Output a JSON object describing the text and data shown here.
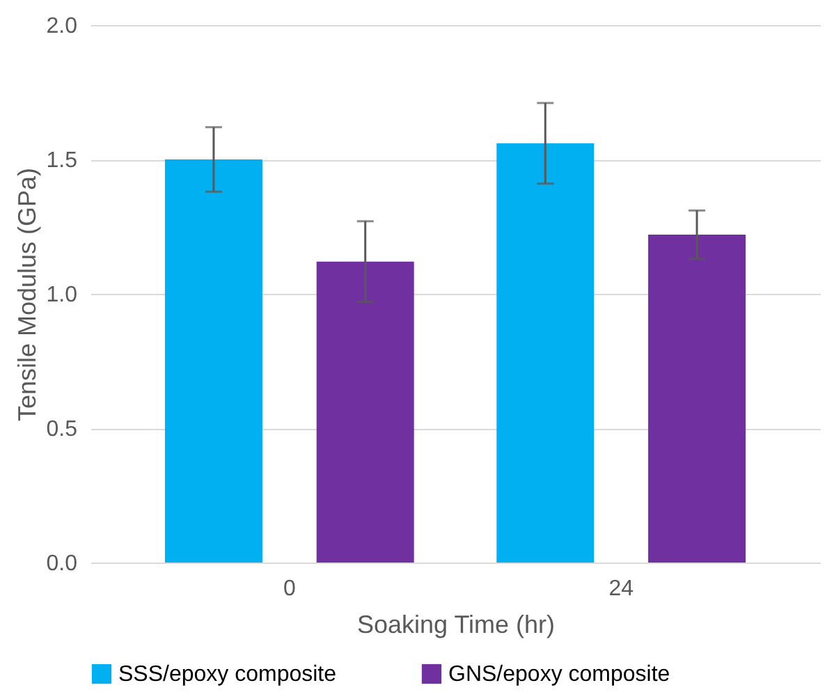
{
  "chart_data": {
    "type": "bar",
    "xlabel": "Soaking Time (hr)",
    "ylabel": "Tensile Modulus (GPa)",
    "categories": [
      "0",
      "24"
    ],
    "series": [
      {
        "name": "SSS/epoxy composite",
        "color": "#00b0f0",
        "values": [
          1.5,
          1.56
        ],
        "errors": [
          0.12,
          0.15
        ]
      },
      {
        "name": "GNS/epoxy composite",
        "color": "#7030a0",
        "values": [
          1.12,
          1.22
        ],
        "errors": [
          0.15,
          0.09
        ]
      }
    ],
    "ylim": [
      0,
      2.0
    ],
    "yticks": [
      {
        "value": 0,
        "label": "0.0"
      },
      {
        "value": 0.5,
        "label": "0.5"
      },
      {
        "value": 1.0,
        "label": "1.0"
      },
      {
        "value": 1.5,
        "label": "1.5"
      },
      {
        "value": 2.0,
        "label": "2.0"
      }
    ],
    "grid": "y",
    "legend": "bottom"
  }
}
